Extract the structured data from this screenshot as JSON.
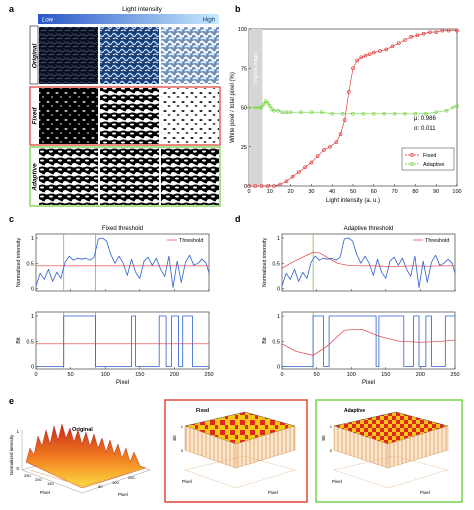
{
  "panels": {
    "a": {
      "letter": "a",
      "title": "Light intensity",
      "low": "Low",
      "high": "High",
      "rows": [
        "Original",
        "Fixed",
        "Adaptive"
      ],
      "colors": {
        "bar_start": "#2a56c6",
        "bar_end": "#c7ecff",
        "fixed_border": "#e2473f",
        "adaptive_border": "#7ad24a"
      }
    },
    "b": {
      "letter": "b"
    },
    "c": {
      "letter": "c"
    },
    "d": {
      "letter": "d"
    },
    "e": {
      "letter": "e",
      "titles": [
        "Original",
        "Fixed",
        "Adaptive"
      ],
      "zlabels": [
        "Normalized intensity",
        "Bit",
        "Bit"
      ],
      "axis_label": "Pixel",
      "ticks": [
        "0",
        "50",
        "100",
        "150",
        "200",
        "250"
      ],
      "z_ticks_original": [
        "1",
        "0"
      ],
      "z_ticks_bit": [
        "1",
        "0"
      ],
      "colors": {
        "fixed_border": "#e2473f",
        "adaptive_border": "#7ad24a",
        "surface_low": "#ffd23a",
        "surface_high": "#d6321a"
      }
    }
  },
  "chart_data": [
    {
      "panel": "b",
      "type": "line",
      "xlabel": "Light intensity (a. u.)",
      "ylabel": "White pixel / total pixel (%)",
      "xlim": [
        0,
        100
      ],
      "ylim": [
        0,
        100
      ],
      "xticks": [
        0,
        10,
        20,
        30,
        40,
        50,
        60,
        70,
        80,
        90,
        100
      ],
      "yticks": [
        0,
        25,
        50,
        75,
        100
      ],
      "shaded_region": [
        0,
        5
      ],
      "shaded_label": "Original image",
      "annotations": [
        "μ: 0.986",
        "σ: 0.011"
      ],
      "legend": "bottom-right",
      "colors": {
        "fixed": "#e02a2a",
        "adaptive": "#6fd13a",
        "shade": "#d6d6d6"
      },
      "series": [
        {
          "name": "Fixed",
          "x": [
            0,
            3,
            6,
            9,
            12,
            15,
            18,
            21,
            24,
            27,
            30,
            33,
            36,
            39,
            42,
            44,
            46,
            48,
            50,
            52,
            54,
            56,
            58,
            60,
            63,
            66,
            69,
            72,
            75,
            78,
            81,
            84,
            87,
            90,
            93,
            96,
            100
          ],
          "values": [
            0,
            0,
            0,
            0,
            0,
            1,
            3,
            6,
            9,
            12,
            15,
            19,
            23,
            25,
            28,
            33,
            42,
            60,
            75,
            80,
            82,
            83,
            84,
            85,
            86,
            87,
            89,
            91,
            93,
            95,
            96,
            97,
            98,
            98,
            99,
            99,
            99
          ]
        },
        {
          "name": "Adaptive",
          "x": [
            0,
            3,
            5,
            6,
            7,
            8,
            9,
            10,
            11,
            12,
            14,
            16,
            18,
            20,
            25,
            30,
            35,
            40,
            45,
            50,
            55,
            60,
            65,
            70,
            75,
            80,
            85,
            90,
            95,
            98,
            100
          ],
          "values": [
            50,
            50,
            50,
            50,
            52,
            54,
            53,
            51,
            49,
            48,
            48,
            47,
            47,
            47,
            47,
            47,
            47,
            46,
            46,
            46,
            46,
            46,
            46,
            46,
            46,
            46,
            46,
            47,
            48,
            50,
            51
          ]
        }
      ]
    },
    {
      "panel": "c",
      "type": "line",
      "title": "Fixed threshold",
      "ylabel_top": "Normalized intensity",
      "ylabel_bottom": "Bit",
      "xlabel": "Pixel",
      "xlim": [
        0,
        250
      ],
      "ylim": [
        0,
        1
      ],
      "xticks": [
        0,
        50,
        100,
        150,
        200,
        250
      ],
      "yticks": [
        0,
        0.5,
        1
      ],
      "yticklabels": [
        "0",
        "0.5",
        "1"
      ],
      "vlines": [
        40,
        86
      ],
      "legend_label": "Threshold",
      "legend": "top-right",
      "threshold_value": 0.45,
      "colors": {
        "signal": "#2d5fd1",
        "threshold": "#e23a3a",
        "vline": "#72c447"
      },
      "signal_x": [
        0,
        6,
        12,
        18,
        24,
        30,
        36,
        42,
        48,
        54,
        60,
        66,
        72,
        78,
        84,
        90,
        96,
        102,
        108,
        114,
        120,
        126,
        132,
        138,
        144,
        150,
        156,
        162,
        168,
        174,
        180,
        186,
        192,
        198,
        204,
        210,
        216,
        222,
        228,
        234,
        240,
        246,
        250
      ],
      "signal_y": [
        0.05,
        0.3,
        0.18,
        0.38,
        0.14,
        0.32,
        0.2,
        0.52,
        0.64,
        0.56,
        0.6,
        0.58,
        0.6,
        0.56,
        0.62,
        0.98,
        1.0,
        0.94,
        0.68,
        0.5,
        0.64,
        0.5,
        0.26,
        0.58,
        0.32,
        0.2,
        0.54,
        0.62,
        0.46,
        0.6,
        0.38,
        0.24,
        0.64,
        0.02,
        0.54,
        0.12,
        0.52,
        0.66,
        0.46,
        0.5,
        0.58,
        0.5,
        0.3
      ],
      "bit_x": [
        0,
        40,
        40,
        86,
        86,
        138,
        138,
        144,
        144,
        178,
        178,
        188,
        188,
        196,
        196,
        206,
        206,
        212,
        212,
        226,
        226,
        250
      ],
      "bit_y": [
        0,
        0,
        1,
        1,
        0,
        0,
        1,
        1,
        0,
        0,
        1,
        1,
        0,
        0,
        1,
        1,
        0,
        0,
        1,
        1,
        0,
        0
      ],
      "bit_threshold_value": 0.45
    },
    {
      "panel": "d",
      "type": "line",
      "title": "Adaptive threshold",
      "ylabel_top": "Normalized intensity",
      "ylabel_bottom": "Bit",
      "xlabel": "Pixel",
      "xlim": [
        0,
        250
      ],
      "ylim": [
        0,
        1
      ],
      "xticks": [
        0,
        50,
        100,
        150,
        200,
        250
      ],
      "yticks": [
        0,
        0.5,
        1
      ],
      "yticklabels": [
        "0",
        "0.5",
        "1"
      ],
      "vlines": [
        45
      ],
      "legend_label": "Threshold",
      "legend": "top-right",
      "colors": {
        "signal": "#2d5fd1",
        "threshold": "#e23a3a",
        "vline": "#72c447"
      },
      "signal_x": [
        0,
        6,
        12,
        18,
        24,
        30,
        36,
        42,
        48,
        54,
        60,
        66,
        72,
        78,
        84,
        90,
        96,
        102,
        108,
        114,
        120,
        126,
        132,
        138,
        144,
        150,
        156,
        162,
        168,
        174,
        180,
        186,
        192,
        198,
        204,
        210,
        216,
        222,
        228,
        234,
        240,
        246,
        250
      ],
      "signal_y": [
        0.05,
        0.3,
        0.18,
        0.38,
        0.14,
        0.32,
        0.2,
        0.52,
        0.64,
        0.56,
        0.6,
        0.58,
        0.6,
        0.56,
        0.62,
        0.98,
        1.0,
        0.94,
        0.68,
        0.5,
        0.64,
        0.5,
        0.26,
        0.58,
        0.32,
        0.2,
        0.54,
        0.62,
        0.46,
        0.6,
        0.38,
        0.24,
        0.64,
        0.02,
        0.54,
        0.12,
        0.52,
        0.66,
        0.46,
        0.5,
        0.58,
        0.5,
        0.3
      ],
      "threshold_x": [
        0,
        15,
        30,
        45,
        55,
        65,
        80,
        95,
        110,
        130,
        150,
        170,
        190,
        210,
        230,
        250
      ],
      "threshold_y": [
        0.4,
        0.52,
        0.62,
        0.72,
        0.7,
        0.62,
        0.5,
        0.46,
        0.45,
        0.45,
        0.44,
        0.44,
        0.45,
        0.44,
        0.45,
        0.45
      ],
      "bit_x": [
        0,
        45,
        45,
        60,
        60,
        68,
        68,
        136,
        136,
        140,
        140,
        176,
        176,
        190,
        190,
        198,
        198,
        208,
        208,
        216,
        216,
        236,
        236,
        250
      ],
      "bit_y": [
        0,
        0,
        1,
        1,
        0,
        0,
        1,
        1,
        0,
        0,
        1,
        1,
        0,
        0,
        1,
        1,
        0,
        0,
        1,
        1,
        0,
        0,
        1,
        1
      ],
      "bit_threshold_x": [
        0,
        20,
        45,
        65,
        90,
        115,
        140,
        170,
        200,
        230,
        250
      ],
      "bit_threshold_y": [
        0.45,
        0.3,
        0.22,
        0.4,
        0.72,
        0.74,
        0.6,
        0.5,
        0.48,
        0.5,
        0.52
      ]
    }
  ]
}
